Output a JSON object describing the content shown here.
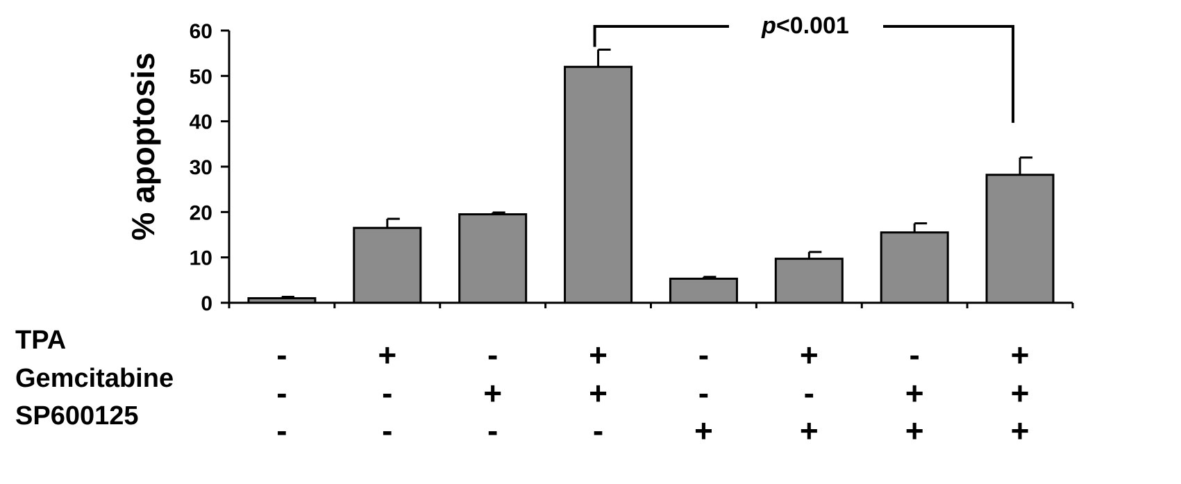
{
  "chart_data": {
    "type": "bar",
    "ylabel": "% apoptosis",
    "ylim": [
      0,
      60
    ],
    "yticks": [
      0,
      10,
      20,
      30,
      40,
      50,
      60
    ],
    "yticks_labels": [
      "0",
      "10",
      "20",
      "30",
      "40",
      "50",
      "60"
    ],
    "values": [
      1,
      16.5,
      19.5,
      52,
      5.3,
      9.7,
      15.5,
      28.2
    ],
    "errors": [
      0.3,
      2.0,
      0.4,
      3.8,
      0.4,
      1.5,
      2.0,
      3.8
    ],
    "bar_color": "#8c8c8c",
    "conditions": [
      {
        "name": "TPA",
        "signs": [
          "-",
          "+",
          "-",
          "+",
          "-",
          "+",
          "-",
          "+"
        ]
      },
      {
        "name": "Gemcitabine",
        "signs": [
          "-",
          "-",
          "+",
          "+",
          "-",
          "-",
          "+",
          "+"
        ]
      },
      {
        "name": "SP600125",
        "signs": [
          "-",
          "-",
          "-",
          "-",
          "+",
          "+",
          "+",
          "+"
        ]
      }
    ],
    "annotation": {
      "prefix": "p",
      "suffix": "<0.001",
      "from_bar": 3,
      "to_bar": 7
    },
    "grid": false
  }
}
